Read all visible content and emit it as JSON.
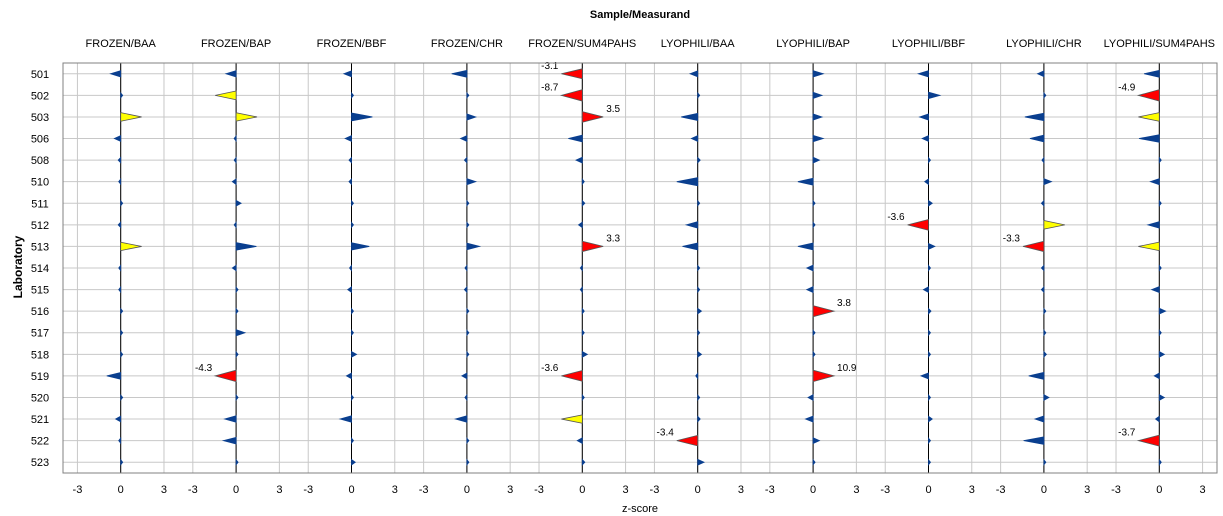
{
  "chart_data": {
    "type": "scatter",
    "title": "Sample/Measurand",
    "xlabel": "z-score",
    "ylabel": "Laboratory",
    "xlim": [
      -4,
      4
    ],
    "x_ticks": [
      "-3",
      "0",
      "3"
    ],
    "grid": true,
    "colors": {
      "ok": "#0a3f8f",
      "warning": "#ffff00",
      "action": "#ff0000",
      "grid": "#c8c8c8"
    },
    "thresholds": {
      "warning_abs": 2,
      "action_abs": 3
    },
    "laboratories": [
      "501",
      "502",
      "503",
      "506",
      "508",
      "510",
      "511",
      "512",
      "513",
      "514",
      "515",
      "516",
      "517",
      "518",
      "519",
      "520",
      "521",
      "522",
      "523"
    ],
    "series": [
      {
        "name": "FROZEN/BAA",
        "values": [
          -0.8,
          0,
          2.3,
          -0.5,
          -0.2,
          -0.1,
          0,
          -0.2,
          2.1,
          -0.1,
          -0.1,
          0,
          0,
          0.1,
          -1.1,
          0,
          -0.4,
          -0.1,
          0.1
        ]
      },
      {
        "name": "FROZEN/BAP",
        "values": [
          -0.8,
          -2.4,
          2.1,
          -0.1,
          -0.1,
          -0.3,
          0.4,
          -0.1,
          1.6,
          -0.3,
          0,
          0,
          0.7,
          0.1,
          -4.3,
          0,
          -0.9,
          -1.0,
          0
        ]
      },
      {
        "name": "FROZEN/BBF",
        "values": [
          -0.6,
          0,
          1.8,
          -0.5,
          -0.2,
          -0.2,
          0,
          0,
          1.4,
          -0.1,
          -0.3,
          0.1,
          0,
          0.4,
          -0.4,
          0,
          -0.9,
          0,
          0.3
        ]
      },
      {
        "name": "FROZEN/CHR",
        "values": [
          -1.2,
          0,
          0.7,
          -0.5,
          -0.2,
          0.7,
          0,
          0,
          1.0,
          -0.1,
          -0.2,
          0,
          0,
          0,
          -0.4,
          -0.1,
          -0.9,
          0,
          0.1
        ]
      },
      {
        "name": "FROZEN/SUM4PAHS",
        "values": [
          -3.1,
          -8.7,
          3.5,
          -1.1,
          -0.5,
          0,
          0.2,
          -0.3,
          3.3,
          -0.1,
          -0.1,
          0,
          0,
          0.4,
          -3.6,
          0,
          -2.1,
          -0.4,
          0.2
        ]
      },
      {
        "name": "LYOPHILI/BAA",
        "values": [
          -0.6,
          0,
          -1.3,
          -0.5,
          0.2,
          -1.9,
          0,
          -0.9,
          -1.2,
          0,
          0,
          0.3,
          0,
          0.3,
          -0.1,
          0,
          0.2,
          -3.4,
          0.5
        ]
      },
      {
        "name": "LYOPHILI/BAP",
        "values": [
          0.8,
          0.7,
          0.7,
          0.8,
          0.5,
          -1.2,
          0,
          0,
          -1.2,
          -0.5,
          -0.5,
          3.8,
          0,
          0,
          10.9,
          -0.4,
          -0.6,
          0.5,
          0
        ]
      },
      {
        "name": "LYOPHILI/BBF",
        "values": [
          -0.8,
          0.9,
          -0.7,
          -0.5,
          0,
          -0.3,
          0.3,
          -3.6,
          0.5,
          0.1,
          -0.4,
          0.2,
          0,
          0,
          -0.6,
          0.1,
          0.3,
          0,
          0
        ]
      },
      {
        "name": "LYOPHILI/CHR",
        "values": [
          -0.5,
          0,
          -1.5,
          -1.1,
          -0.1,
          0.6,
          -0.2,
          2.3,
          -3.3,
          -0.2,
          -0.2,
          0,
          0.1,
          0.2,
          -1.2,
          0.4,
          -0.7,
          -1.6,
          0
        ]
      },
      {
        "name": "LYOPHILI/SUM4PAHS",
        "values": [
          -1.2,
          -4.9,
          -2.3,
          -1.6,
          0,
          -0.7,
          0,
          -0.9,
          -2.2,
          0,
          -0.6,
          0.5,
          0,
          0.4,
          -0.4,
          0.4,
          -0.3,
          -3.7,
          0.1
        ]
      }
    ]
  }
}
